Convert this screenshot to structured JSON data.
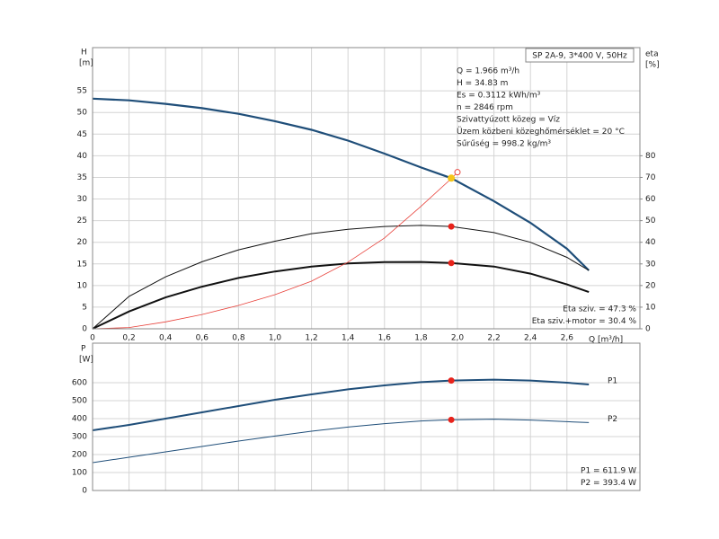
{
  "chart_data": [
    {
      "type": "line",
      "title": "SP 2A-9, 3*400 V, 50Hz",
      "y_label": [
        "H",
        "[m]"
      ],
      "y2_label": [
        "eta",
        "[%]"
      ],
      "x_label": "Q [m³/h]",
      "info": [
        "Q = 1.966 m³/h",
        "H = 34.83 m",
        "Es = 0.3112 kWh/m³",
        "n = 2846 rpm",
        "Szivattyúzott közeg = Víz",
        "Üzem közbeni közeghőmérséklet = 20 °C",
        "Sűrűség = 998.2 kg/m³"
      ],
      "notes": [
        "Eta sziv. = 47.3 %",
        "Eta sziv.+motor = 30.4 %"
      ],
      "xlim": [
        0,
        3.0
      ],
      "ylim": [
        0,
        65
      ],
      "y2lim": [
        0,
        130
      ],
      "xticks": [
        0,
        {
          "value": 0.2,
          "label": "0,2"
        },
        {
          "value": 0.4,
          "label": "0,4"
        },
        {
          "value": 0.6,
          "label": "0,6"
        },
        {
          "value": 0.8,
          "label": "0,8"
        },
        {
          "value": 1.0,
          "label": "1,0"
        },
        {
          "value": 1.2,
          "label": "1,2"
        },
        {
          "value": 1.4,
          "label": "1,4"
        },
        {
          "value": 1.6,
          "label": "1,6"
        },
        {
          "value": 1.8,
          "label": "1,8"
        },
        {
          "value": 2.0,
          "label": "2,0"
        },
        {
          "value": 2.2,
          "label": "2,2"
        },
        {
          "value": 2.4,
          "label": "2,4"
        },
        {
          "value": 2.6,
          "label": "2,6"
        }
      ],
      "yticks": [
        0,
        5,
        10,
        15,
        20,
        25,
        30,
        35,
        40,
        45,
        50,
        55
      ],
      "y2ticks": [
        0,
        10,
        20,
        30,
        40,
        50,
        60,
        70,
        80
      ],
      "grid": true,
      "series": [
        {
          "color": "#1f4e79",
          "width": 2.2,
          "x": [
            0,
            0.2,
            0.4,
            0.6,
            0.8,
            1.0,
            1.2,
            1.4,
            1.6,
            1.8,
            1.966,
            2.2,
            2.4,
            2.6,
            2.72
          ],
          "values": [
            53.2,
            52.8,
            52,
            51,
            49.7,
            48,
            46,
            43.5,
            40.5,
            37.3,
            34.83,
            29.5,
            24.5,
            18.5,
            13.5
          ]
        },
        {
          "color": "#111111",
          "width": 1,
          "axis": "y2",
          "x": [
            0,
            0.2,
            0.4,
            0.6,
            0.8,
            1.0,
            1.2,
            1.4,
            1.6,
            1.8,
            1.966,
            2.2,
            2.4,
            2.6,
            2.72
          ],
          "values": [
            0,
            15,
            24,
            31,
            36.5,
            40.5,
            44,
            46,
            47.3,
            47.8,
            47.3,
            44.5,
            40,
            33,
            27
          ]
        },
        {
          "color": "#111111",
          "width": 2,
          "axis": "y2",
          "x": [
            0,
            0.2,
            0.4,
            0.6,
            0.8,
            1.0,
            1.2,
            1.4,
            1.6,
            1.8,
            1.966,
            2.2,
            2.4,
            2.6,
            2.72
          ],
          "values": [
            0,
            8,
            14.5,
            19.5,
            23.5,
            26.5,
            28.8,
            30.2,
            30.8,
            30.9,
            30.4,
            28.8,
            25.5,
            20.5,
            17
          ]
        },
        {
          "color": "#e8413a",
          "width": 0.8,
          "x": [
            0,
            0.2,
            0.4,
            0.6,
            0.8,
            1.0,
            1.2,
            1.4,
            1.6,
            1.8,
            1.966,
            2.0
          ],
          "values": [
            0,
            0.3,
            1.6,
            3.3,
            5.4,
            7.9,
            11,
            15.4,
            21,
            28.3,
            34.7,
            36.2
          ]
        }
      ],
      "markers": [
        {
          "x": 1.966,
          "y": 34.83,
          "color": "#f5c518",
          "r": 3.5
        },
        {
          "x": 2.0,
          "y": 36.2,
          "color": "#e8413a",
          "r": 3,
          "open": true
        },
        {
          "x": 1.966,
          "y": 47.3,
          "color": "#e8221a",
          "r": 3,
          "axis": "y2"
        },
        {
          "x": 1.966,
          "y": 30.4,
          "color": "#e8221a",
          "r": 3,
          "axis": "y2"
        }
      ]
    },
    {
      "type": "line",
      "y_label": [
        "P",
        "[W]"
      ],
      "notes": [
        "P1 = 611.9 W",
        "P2 = 393.4 W"
      ],
      "xlim": [
        0,
        3.0
      ],
      "ylim": [
        0,
        820
      ],
      "yticks": [
        0,
        100,
        200,
        300,
        400,
        500,
        600
      ],
      "grid": true,
      "series": [
        {
          "name": "P1",
          "color": "#1f4e79",
          "width": 2,
          "x": [
            0,
            0.2,
            0.4,
            0.6,
            0.8,
            1.0,
            1.2,
            1.4,
            1.6,
            1.8,
            1.966,
            2.2,
            2.4,
            2.6,
            2.72
          ],
          "values": [
            335,
            365,
            400,
            435,
            470,
            505,
            535,
            563,
            585,
            603,
            611.9,
            617,
            612,
            600,
            590
          ]
        },
        {
          "name": "P2",
          "color": "#1f4e79",
          "width": 1,
          "x": [
            0,
            0.2,
            0.4,
            0.6,
            0.8,
            1.0,
            1.2,
            1.4,
            1.6,
            1.8,
            1.966,
            2.2,
            2.4,
            2.6,
            2.72
          ],
          "values": [
            155,
            185,
            215,
            245,
            275,
            303,
            330,
            353,
            372,
            387,
            393.4,
            397,
            392,
            383,
            378
          ]
        }
      ],
      "markers": [
        {
          "x": 1.966,
          "y": 611.9,
          "color": "#e8221a",
          "r": 3
        },
        {
          "x": 1.966,
          "y": 393.4,
          "color": "#e8221a",
          "r": 3
        }
      ]
    }
  ]
}
